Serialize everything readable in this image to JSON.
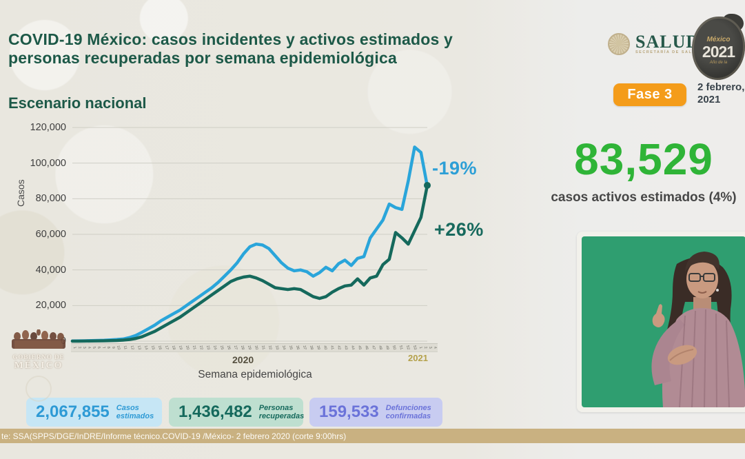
{
  "header": {
    "title": "COVID-19 México: casos incidentes y activos estimados y personas recuperadas por semana epidemiológica",
    "subtitle": "Escenario nacional",
    "salud_logo_text": "SALUD",
    "salud_logo_subtext": "SECRETARÍA DE SALUD",
    "mexico2021_line1": "México",
    "mexico2021_line2": "2021",
    "mexico2021_line3": "Año de la",
    "phase_badge": "Fase 3",
    "date_line1": "2 febrero,",
    "date_line2": "2021"
  },
  "highlight": {
    "value": "83,529",
    "caption": "casos activos estimados (4%)",
    "color": "#2fb437"
  },
  "chart_data": {
    "type": "line",
    "title": "Escenario nacional",
    "xlabel": "Semana epidemiológica",
    "ylabel": "Casos",
    "ylim": [
      0,
      120000
    ],
    "grid": true,
    "y_ticks_top_down": [
      "120,000",
      "100,000",
      "80,000",
      "60,000",
      "40,000",
      "20,000",
      "0"
    ],
    "x_year_labels": [
      "2020",
      "2021"
    ],
    "x_tick_weeks": [
      1,
      2,
      3,
      4,
      5,
      6,
      7,
      8,
      9,
      10,
      11,
      12,
      13,
      14,
      15,
      16,
      17,
      18,
      19,
      20,
      21,
      22,
      23,
      24,
      25,
      26,
      27,
      28,
      29,
      30,
      31,
      32,
      33,
      34,
      35,
      36,
      37,
      38,
      39,
      40,
      41,
      42,
      43,
      44,
      45,
      46,
      47,
      48,
      49,
      50,
      51,
      52,
      53,
      1,
      2,
      3,
      4
    ],
    "series": [
      {
        "name": "casos incidentes estimados",
        "color": "#2aa5da",
        "values": [
          100,
          150,
          200,
          300,
          400,
          500,
          700,
          900,
          1200,
          2000,
          3200,
          5000,
          7000,
          9000,
          11500,
          13500,
          15500,
          17500,
          20000,
          22500,
          25000,
          27500,
          30000,
          33000,
          36500,
          40000,
          44000,
          49000,
          53000,
          54500,
          54000,
          52000,
          48000,
          44000,
          41000,
          39500,
          40000,
          39000,
          36500,
          38500,
          41500,
          39500,
          43500,
          45500,
          42500,
          46500,
          47500,
          58000,
          63000,
          68000,
          77000,
          75000,
          74000,
          90000,
          109000,
          106000,
          87000
        ]
      },
      {
        "name": "personas recuperadas",
        "color": "#15695c",
        "values": [
          0,
          0,
          50,
          100,
          150,
          200,
          300,
          400,
          600,
          900,
          1500,
          2500,
          4000,
          5500,
          7500,
          9500,
          11500,
          13500,
          16000,
          18500,
          21000,
          23500,
          26000,
          28500,
          31000,
          33500,
          35000,
          36000,
          36500,
          35500,
          34000,
          32000,
          30000,
          29500,
          29000,
          29500,
          29000,
          27000,
          25000,
          24000,
          25000,
          27500,
          29500,
          31000,
          31500,
          35000,
          31500,
          35500,
          36500,
          43000,
          46000,
          61000,
          58000,
          54500,
          62000,
          69500,
          87500
        ],
        "end_marker": true
      }
    ],
    "annotations": [
      {
        "text": "-19%",
        "color": "#2d9fd6"
      },
      {
        "text": "+26%",
        "color": "#17695d"
      }
    ]
  },
  "stats": [
    {
      "value": "2,067,855",
      "label": "Casos estimados",
      "accent": "#2e9ad5",
      "bg": "#c6e6f5"
    },
    {
      "value": "1,436,482",
      "label": "Personas recuperadas",
      "accent": "#15695c",
      "bg": "#bedfd0"
    },
    {
      "value": "159,533",
      "label": "Defunciones confirmadas",
      "accent": "#6b73d9",
      "bg": "#c8ccf1"
    }
  ],
  "footer": {
    "source": "te: SSA(SPPS/DGE/InDRE/Informe técnico.COVID-19 /México- 2 febrero 2020 (corte 9:00hrs)"
  },
  "gobierno_logo": {
    "line1": "GOBIERNO DE",
    "line2": "MÉXICO"
  }
}
